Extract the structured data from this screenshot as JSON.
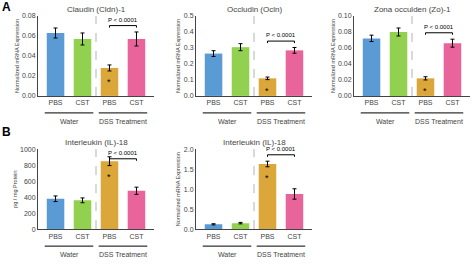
{
  "chart_data": [
    {
      "type": "bar",
      "title": "Claudin (Cldn)-1",
      "ylabel": "Normalized mRNA Expression",
      "categories": [
        "PBS",
        "CST",
        "PBS",
        "CST"
      ],
      "values": [
        0.063,
        0.057,
        0.028,
        0.057
      ],
      "errors": [
        0.005,
        0.006,
        0.003,
        0.007
      ],
      "colors": [
        "#5B9BD5",
        "#92D050",
        "#DBA63A",
        "#E8649A"
      ],
      "ylim": [
        0,
        0.08
      ],
      "yticks": [
        {
          "value": 0,
          "label": "0.00"
        },
        {
          "value": 0.02,
          "label": "0.02"
        },
        {
          "value": 0.04,
          "label": "0.04"
        },
        {
          "value": 0.06,
          "label": "0.06"
        },
        {
          "value": 0.08,
          "label": "0.08"
        }
      ],
      "grid": false,
      "annotations": [
        {
          "type": "panel",
          "text": "A"
        },
        {
          "type": "bracket",
          "text": "P < 0.0001",
          "x": [
            2,
            3
          ]
        },
        {
          "type": "mark",
          "text": "*",
          "x": 2
        },
        {
          "type": "group",
          "text": "Water",
          "x": [
            0,
            1
          ]
        },
        {
          "type": "group",
          "text": "DSS Treatment",
          "x": [
            2,
            3
          ]
        }
      ]
    },
    {
      "type": "bar",
      "title": "Occludin (Ocln)",
      "ylabel": "Normalized mRNA Expression",
      "categories": [
        "PBS",
        "CST",
        "PBS",
        "CST"
      ],
      "values": [
        0.265,
        0.305,
        0.11,
        0.285
      ],
      "errors": [
        0.018,
        0.022,
        0.008,
        0.018
      ],
      "colors": [
        "#5B9BD5",
        "#92D050",
        "#DBA63A",
        "#E8649A"
      ],
      "ylim": [
        0,
        0.5
      ],
      "yticks": [
        {
          "value": 0,
          "label": "0.0"
        },
        0.1,
        0.2,
        0.3,
        0.4,
        0.5
      ],
      "grid": false,
      "annotations": [
        {
          "type": "bracket",
          "text": "P < 0.0001",
          "x": [
            2,
            3
          ]
        },
        {
          "type": "mark",
          "text": "*",
          "x": 2
        },
        {
          "type": "group",
          "text": "Water",
          "x": [
            0,
            1
          ]
        },
        {
          "type": "group",
          "text": "DSS Treatment",
          "x": [
            2,
            3
          ]
        }
      ]
    },
    {
      "type": "bar",
      "title": "Zona occulden (Zo)-1",
      "ylabel": "Normalized mRNA Expression",
      "categories": [
        "PBS",
        "CST",
        "PBS",
        "CST"
      ],
      "values": [
        0.072,
        0.08,
        0.022,
        0.066
      ],
      "errors": [
        0.004,
        0.005,
        0.002,
        0.005
      ],
      "colors": [
        "#5B9BD5",
        "#92D050",
        "#DBA63A",
        "#E8649A"
      ],
      "ylim": [
        0,
        0.1
      ],
      "yticks": [
        {
          "value": 0,
          "label": "0.00"
        },
        {
          "value": 0.02,
          "label": "0.02"
        },
        {
          "value": 0.04,
          "label": "0.04"
        },
        {
          "value": 0.06,
          "label": "0.06"
        },
        {
          "value": 0.08,
          "label": "0.08"
        },
        {
          "value": 0.1,
          "label": "0.10"
        }
      ],
      "grid": false,
      "annotations": [
        {
          "type": "bracket",
          "text": "P < 0.0001",
          "x": [
            2,
            3
          ]
        },
        {
          "type": "mark",
          "text": "*",
          "x": 2
        },
        {
          "type": "group",
          "text": "Water",
          "x": [
            0,
            1
          ]
        },
        {
          "type": "group",
          "text": "DSS Treatment",
          "x": [
            2,
            3
          ]
        }
      ]
    },
    {
      "type": "bar",
      "title": "Interleukin (IL)-18",
      "ylabel": "pg / mg Protein",
      "categories": [
        "PBS",
        "CST",
        "PBS",
        "CST"
      ],
      "values": [
        380,
        360,
        850,
        480
      ],
      "errors": [
        35,
        30,
        55,
        45
      ],
      "colors": [
        "#5B9BD5",
        "#92D050",
        "#DBA63A",
        "#E8649A"
      ],
      "ylim": [
        0,
        1000
      ],
      "yticks": [
        0,
        200,
        400,
        600,
        800,
        1000
      ],
      "grid": false,
      "annotations": [
        {
          "type": "panel",
          "text": "B"
        },
        {
          "type": "bracket",
          "text": "P < 0.0001",
          "x": [
            2,
            3
          ]
        },
        {
          "type": "mark",
          "text": "*",
          "x": 2
        },
        {
          "type": "group",
          "text": "Water",
          "x": [
            0,
            1
          ]
        },
        {
          "type": "group",
          "text": "DSS Treatment",
          "x": [
            2,
            3
          ]
        }
      ]
    },
    {
      "type": "bar",
      "title": "Interleukin (IL)-18",
      "ylabel": "Normalized mRNA Expression",
      "categories": [
        "PBS",
        "CST",
        "PBS",
        "CST"
      ],
      "values": [
        0.12,
        0.15,
        1.63,
        0.88
      ],
      "errors": [
        0.015,
        0.018,
        0.07,
        0.13
      ],
      "colors": [
        "#5B9BD5",
        "#92D050",
        "#DBA63A",
        "#E8649A"
      ],
      "ylim": [
        0,
        2.0
      ],
      "yticks": [
        {
          "value": 0,
          "label": "0.0"
        },
        0.5,
        {
          "value": 1.0,
          "label": "1.0"
        },
        1.5,
        {
          "value": 2.0,
          "label": "2.0"
        }
      ],
      "grid": false,
      "annotations": [
        {
          "type": "bracket",
          "text": "P < 0.0001",
          "x": [
            2,
            3
          ]
        },
        {
          "type": "mark",
          "text": "*",
          "x": 2
        },
        {
          "type": "group",
          "text": "Water",
          "x": [
            0,
            1
          ]
        },
        {
          "type": "group",
          "text": "DSS Treatment",
          "x": [
            2,
            3
          ]
        }
      ]
    }
  ]
}
